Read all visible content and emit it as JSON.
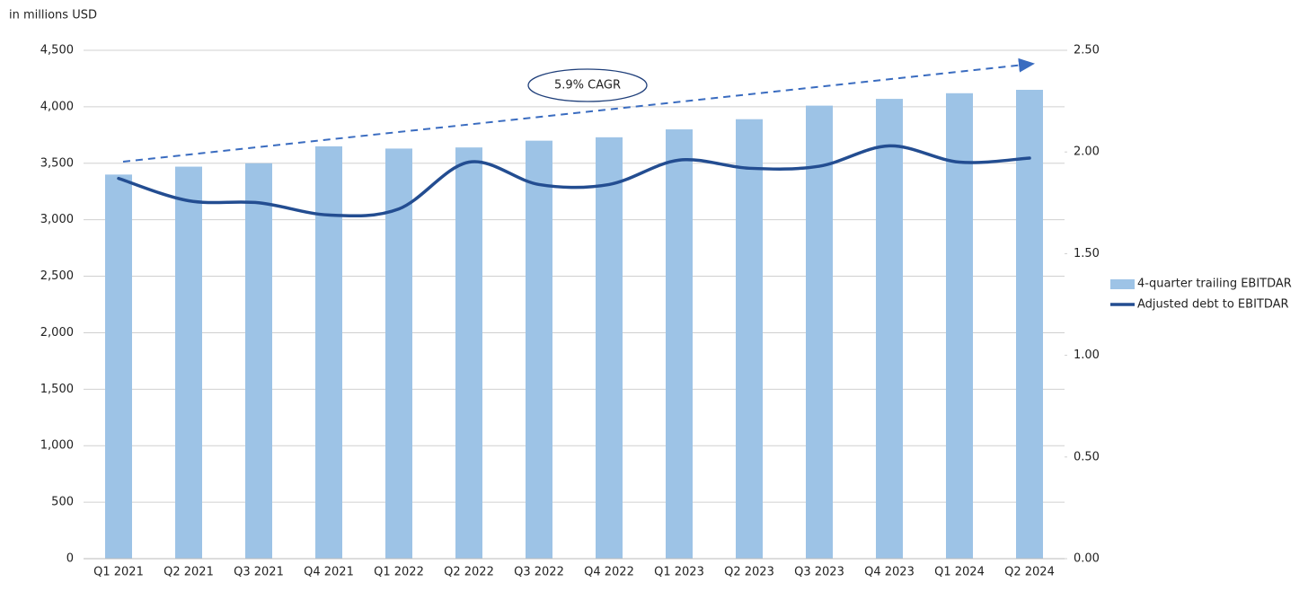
{
  "chart_data": {
    "type": "bar-line",
    "subtitle": "in millions USD",
    "annotation": "5.9% CAGR",
    "categories": [
      "Q1 2021",
      "Q2 2021",
      "Q3 2021",
      "Q4 2021",
      "Q1 2022",
      "Q2 2022",
      "Q3 2022",
      "Q4 2022",
      "Q1 2023",
      "Q2 2023",
      "Q3 2023",
      "Q4 2023",
      "Q1 2024",
      "Q2 2024"
    ],
    "series": [
      {
        "name": "4-quarter trailing EBITDAR",
        "type": "bar",
        "color": "#9dc3e6",
        "values": [
          3400,
          3470,
          3500,
          3650,
          3630,
          3640,
          3700,
          3730,
          3800,
          3890,
          4010,
          4070,
          4120,
          4150
        ]
      },
      {
        "name": "Adjusted debt to EBITDAR",
        "type": "line",
        "axis": "y2",
        "color": "#234d91",
        "values": [
          1.87,
          1.76,
          1.75,
          1.69,
          1.72,
          1.95,
          1.84,
          1.84,
          1.96,
          1.92,
          1.93,
          2.03,
          1.95,
          1.97
        ]
      }
    ],
    "ylim": [
      0,
      4500
    ],
    "yticks": [
      0,
      500,
      {
        "value": 1000,
        "label": "1,000"
      },
      {
        "value": 1500,
        "label": "1,500"
      },
      {
        "value": 2000,
        "label": "2,000"
      },
      {
        "value": 2500,
        "label": "2,500"
      },
      {
        "value": 3000,
        "label": "3,000"
      },
      {
        "value": 3500,
        "label": "3,500"
      },
      {
        "value": 4000,
        "label": "4,000"
      },
      {
        "value": 4500,
        "label": "4,500"
      }
    ],
    "y2lim": [
      0,
      2.5
    ],
    "y2ticks": [
      {
        "value": 0,
        "label": "0.00"
      },
      {
        "value": 0.5,
        "label": "0.50"
      },
      {
        "value": 1,
        "label": "1.00"
      },
      {
        "value": 1.5,
        "label": "1.50"
      },
      {
        "value": 2,
        "label": "2.00"
      },
      {
        "value": 2.5,
        "label": "2.50"
      }
    ],
    "grid": true,
    "legend": "right"
  }
}
